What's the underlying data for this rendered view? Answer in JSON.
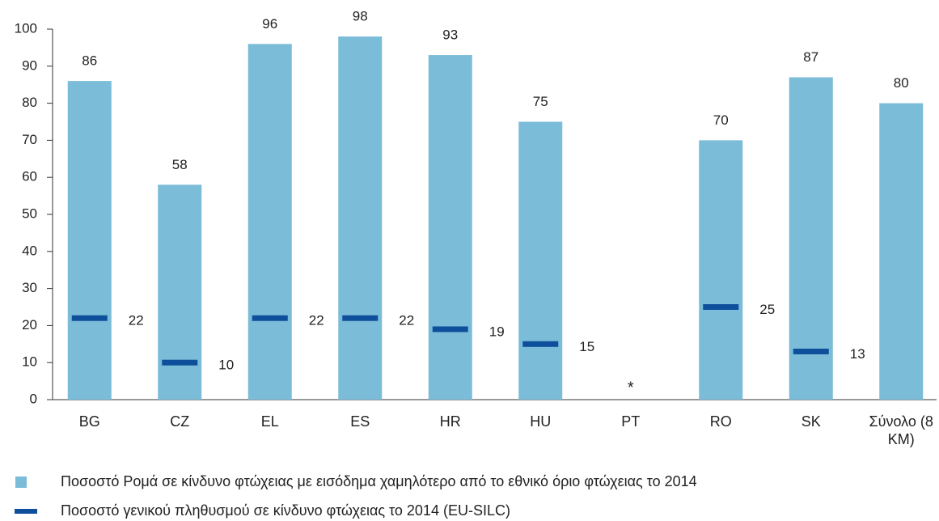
{
  "chart_data": {
    "type": "bar",
    "categories": [
      "BG",
      "CZ",
      "EL",
      "ES",
      "HR",
      "HU",
      "PT",
      "RO",
      "SK",
      "Σύνολο (8 ΚΜ)"
    ],
    "series": [
      {
        "name": "Ποσοστό Ρομά σε κίνδυνο φτώχειας με εισόδημα χαμηλότερο από το εθνικό όριο φτώχειας το 2014",
        "color": "#7bbcd8",
        "kind": "bar",
        "values": [
          86,
          58,
          96,
          98,
          93,
          75,
          null,
          70,
          87,
          80
        ]
      },
      {
        "name": "Ποσοστό γενικού πληθυσμού σε κίνδυνο φτώχειας το 2014 (EU-SILC)",
        "color": "#0e4f9c",
        "kind": "marker",
        "values": [
          22,
          10,
          22,
          22,
          19,
          15,
          null,
          25,
          13,
          null
        ]
      }
    ],
    "annotations": [
      {
        "text": "*",
        "x": "PT"
      }
    ],
    "ylim": [
      0,
      100
    ],
    "yticks": [
      0,
      10,
      20,
      30,
      40,
      50,
      60,
      70,
      80,
      90,
      100
    ],
    "grid": false
  }
}
